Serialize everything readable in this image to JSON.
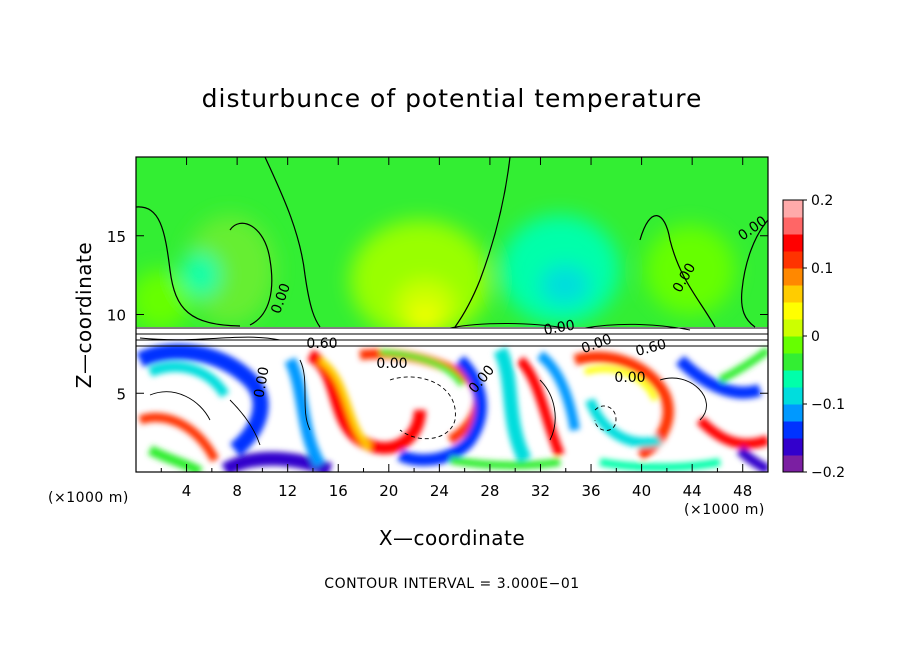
{
  "chart_data": {
    "type": "heatmap",
    "title": "disturbunce of potential temperature",
    "xlabel": "X—coordinate",
    "ylabel": "Z—coordinate",
    "x_unit": "(×1000 m)",
    "z_unit": "(×1000 m)",
    "xlim": [
      0,
      50
    ],
    "ylim": [
      0,
      20
    ],
    "x_ticks": [
      "4",
      "8",
      "12",
      "16",
      "20",
      "24",
      "28",
      "32",
      "36",
      "40",
      "44",
      "48"
    ],
    "y_ticks": [
      "5",
      "10",
      "15"
    ],
    "colorbar": {
      "range": [
        -0.2,
        0.2
      ],
      "tick_labels": [
        "0.2",
        "0.1",
        "0",
        "−0.1",
        "−0.2"
      ],
      "colors": [
        "#7b1fa2",
        "#3300cc",
        "#0033ff",
        "#0099ff",
        "#00dddd",
        "#00ffaa",
        "#33ee33",
        "#66ff00",
        "#ccff00",
        "#ffff00",
        "#ffcc00",
        "#ff8800",
        "#ff3300",
        "#ff0000",
        "#ff6666",
        "#ffaaaa"
      ]
    },
    "contour_labels": [
      "0.00",
      "0.00",
      "0.00",
      "0.00",
      "0.00",
      "0.00",
      "0.60",
      "0.60",
      "0.00",
      "0.00",
      "0.00"
    ],
    "contour_interval": "CONTOUR INTERVAL = 3.000E−01"
  }
}
